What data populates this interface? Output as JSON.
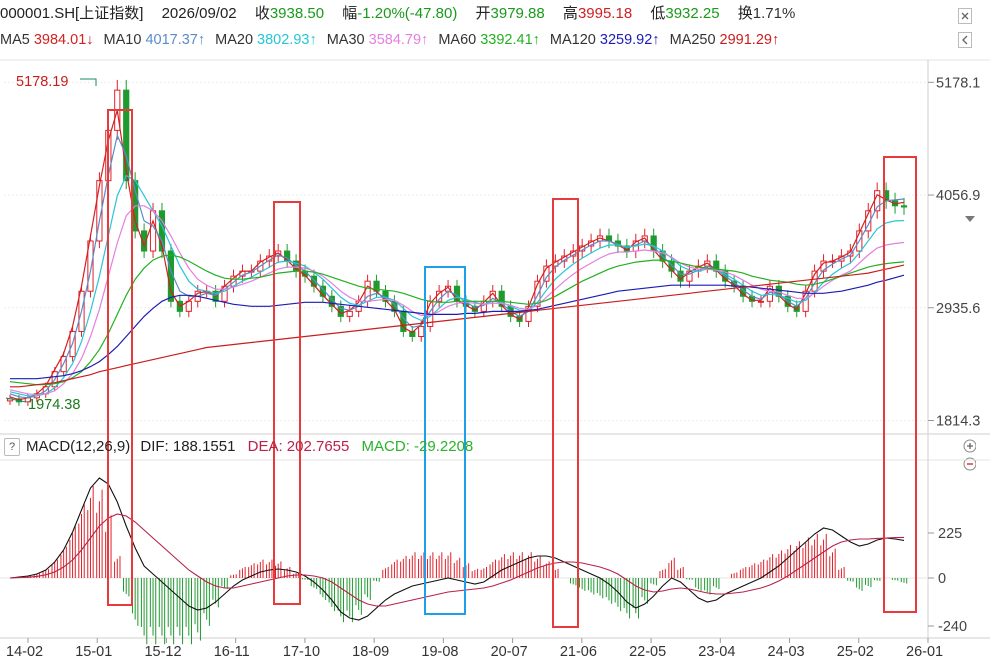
{
  "header": {
    "code": "000001.SH[上证指数]",
    "date": "2026/09/02",
    "close_label": "收",
    "close": "3938.50",
    "change_label": "幅",
    "change": "-1.20%(-47.80)",
    "open_label": "开",
    "open": "3979.88",
    "high_label": "高",
    "high": "3995.18",
    "low_label": "低",
    "low": "3932.25",
    "turnover_label": "换",
    "turnover": "1.71%"
  },
  "ma_legend": [
    {
      "label": "MA5",
      "value": "3984.01↓",
      "color": "#d42020"
    },
    {
      "label": "MA10",
      "value": "4017.37↑",
      "color": "#5a8cc8"
    },
    {
      "label": "MA20",
      "value": "3802.93↑",
      "color": "#26c6d6"
    },
    {
      "label": "MA30",
      "value": "3584.79↑",
      "color": "#e27fe0"
    },
    {
      "label": "MA60",
      "value": "3392.41↑",
      "color": "#22b022"
    },
    {
      "label": "MA120",
      "value": "3259.92↑",
      "color": "#1c1cb4"
    },
    {
      "label": "MA250",
      "value": "2991.29↑",
      "color": "#c81e1e"
    }
  ],
  "macd_header": {
    "help": "?",
    "title": "MACD(12,26,9)",
    "dif": "DIF: 188.1551",
    "dea": "DEA: 202.7655",
    "macd": "MACD: -29.2208"
  },
  "chart_data": {
    "type": "candlestick",
    "price_axis": {
      "ticks": [
        "5178.1",
        "4056.9",
        "2935.6",
        "1814.3"
      ],
      "range": [
        1700,
        5400
      ]
    },
    "annotations": {
      "high": "5178.19",
      "low": "1974.38"
    },
    "macd_axis": {
      "ticks": [
        "225",
        "0",
        "-240"
      ],
      "range": [
        -290,
        580
      ]
    },
    "x_ticks": [
      "14-02",
      "15-01",
      "15-12",
      "16-11",
      "17-10",
      "18-09",
      "19-08",
      "20-07",
      "21-06",
      "22-05",
      "23-04",
      "24-03",
      "25-02",
      "26-01"
    ],
    "price_series": [
      2030,
      2000,
      2040,
      2080,
      2150,
      2300,
      2450,
      2700,
      3100,
      3600,
      4200,
      4700,
      5100,
      4200,
      3700,
      3500,
      3900,
      3500,
      3000,
      2900,
      3000,
      3100,
      3100,
      3000,
      3150,
      3250,
      3300,
      3300,
      3400,
      3450,
      3500,
      3400,
      3300,
      3250,
      3150,
      3050,
      2950,
      2850,
      2900,
      3000,
      3200,
      3100,
      3000,
      2900,
      2700,
      2650,
      2750,
      3000,
      3100,
      3150,
      3000,
      2950,
      2900,
      3000,
      3100,
      2950,
      2850,
      2800,
      2950,
      3200,
      3350,
      3400,
      3450,
      3500,
      3550,
      3600,
      3650,
      3600,
      3550,
      3500,
      3600,
      3650,
      3500,
      3400,
      3300,
      3200,
      3300,
      3350,
      3400,
      3300,
      3200,
      3150,
      3050,
      3000,
      3000,
      3150,
      3050,
      2950,
      2900,
      3100,
      3300,
      3400,
      3400,
      3450,
      3500,
      3700,
      3900,
      4100,
      4000,
      3950,
      3938
    ],
    "ma_series": {
      "MA5": [
        2050,
        2020,
        2040,
        2080,
        2160,
        2320,
        2480,
        2750,
        3150,
        3650,
        4150,
        4600,
        4900,
        4300,
        3800,
        3550,
        3800,
        3550,
        3100,
        2950,
        3000,
        3080,
        3100,
        3050,
        3150,
        3230,
        3300,
        3300,
        3390,
        3440,
        3480,
        3410,
        3320,
        3260,
        3160,
        3060,
        2970,
        2880,
        2910,
        2990,
        3150,
        3100,
        3010,
        2920,
        2740,
        2690,
        2770,
        2980,
        3080,
        3140,
        3010,
        2960,
        2910,
        2990,
        3080,
        2960,
        2870,
        2820,
        2940,
        3170,
        3330,
        3390,
        3440,
        3490,
        3540,
        3590,
        3630,
        3600,
        3560,
        3510,
        3590,
        3630,
        3510,
        3410,
        3310,
        3220,
        3290,
        3340,
        3380,
        3310,
        3220,
        3160,
        3070,
        3010,
        3010,
        3130,
        3060,
        2970,
        2920,
        3080,
        3270,
        3380,
        3400,
        3440,
        3490,
        3680,
        3870,
        4060,
        4010,
        3970,
        3984
      ],
      "MA10": [
        2080,
        2050,
        2040,
        2060,
        2110,
        2220,
        2380,
        2580,
        2900,
        3300,
        3800,
        4250,
        4650,
        4450,
        4100,
        3800,
        3750,
        3600,
        3300,
        3100,
        3050,
        3050,
        3080,
        3060,
        3120,
        3190,
        3260,
        3290,
        3350,
        3410,
        3460,
        3430,
        3360,
        3300,
        3210,
        3120,
        3020,
        2930,
        2910,
        2950,
        3050,
        3080,
        3040,
        2970,
        2830,
        2740,
        2760,
        2900,
        3020,
        3100,
        3060,
        2990,
        2940,
        2960,
        3030,
        2980,
        2900,
        2850,
        2900,
        3060,
        3240,
        3340,
        3410,
        3460,
        3510,
        3560,
        3600,
        3600,
        3570,
        3530,
        3560,
        3600,
        3540,
        3450,
        3360,
        3270,
        3270,
        3310,
        3350,
        3320,
        3250,
        3190,
        3110,
        3050,
        3020,
        3090,
        3070,
        3000,
        2950,
        3030,
        3180,
        3310,
        3370,
        3420,
        3460,
        3600,
        3760,
        3940,
        4000,
        4010,
        4017
      ],
      "MA20": [
        2100,
        2080,
        2060,
        2060,
        2080,
        2140,
        2240,
        2380,
        2600,
        2900,
        3250,
        3650,
        4050,
        4250,
        4200,
        4050,
        3900,
        3750,
        3550,
        3350,
        3200,
        3120,
        3100,
        3080,
        3100,
        3150,
        3200,
        3240,
        3290,
        3340,
        3390,
        3400,
        3380,
        3350,
        3290,
        3220,
        3130,
        3040,
        2980,
        2960,
        3000,
        3040,
        3040,
        3010,
        2930,
        2850,
        2810,
        2850,
        2930,
        3010,
        3040,
        3020,
        2990,
        2970,
        3000,
        2990,
        2950,
        2910,
        2910,
        2990,
        3110,
        3220,
        3300,
        3370,
        3430,
        3480,
        3530,
        3560,
        3560,
        3540,
        3550,
        3570,
        3550,
        3500,
        3430,
        3350,
        3310,
        3300,
        3320,
        3310,
        3270,
        3220,
        3160,
        3100,
        3060,
        3070,
        3060,
        3030,
        2990,
        3010,
        3090,
        3190,
        3270,
        3330,
        3380,
        3480,
        3600,
        3720,
        3780,
        3800,
        3803
      ],
      "MA30": [
        2120,
        2100,
        2080,
        2070,
        2080,
        2110,
        2180,
        2280,
        2430,
        2650,
        2920,
        3250,
        3580,
        3850,
        3950,
        3950,
        3900,
        3800,
        3650,
        3480,
        3330,
        3220,
        3160,
        3120,
        3120,
        3140,
        3170,
        3200,
        3240,
        3280,
        3320,
        3340,
        3340,
        3330,
        3300,
        3250,
        3180,
        3100,
        3040,
        3000,
        3000,
        3010,
        3020,
        3010,
        2960,
        2900,
        2860,
        2860,
        2900,
        2950,
        2980,
        2990,
        2980,
        2970,
        2980,
        2980,
        2960,
        2930,
        2920,
        2960,
        3040,
        3120,
        3200,
        3270,
        3330,
        3380,
        3430,
        3470,
        3490,
        3490,
        3500,
        3510,
        3500,
        3480,
        3440,
        3380,
        3340,
        3320,
        3320,
        3310,
        3290,
        3260,
        3210,
        3160,
        3120,
        3100,
        3090,
        3060,
        3030,
        3030,
        3080,
        3150,
        3210,
        3260,
        3300,
        3380,
        3460,
        3530,
        3560,
        3575,
        3585
      ],
      "MA60": [
        2200,
        2190,
        2180,
        2170,
        2170,
        2180,
        2200,
        2240,
        2300,
        2400,
        2520,
        2680,
        2870,
        3060,
        3220,
        3330,
        3410,
        3450,
        3460,
        3440,
        3400,
        3350,
        3300,
        3260,
        3230,
        3220,
        3220,
        3230,
        3240,
        3260,
        3280,
        3290,
        3300,
        3300,
        3290,
        3270,
        3240,
        3210,
        3180,
        3150,
        3130,
        3120,
        3110,
        3100,
        3080,
        3050,
        3020,
        3000,
        2990,
        2990,
        3000,
        3000,
        3000,
        3000,
        3000,
        3000,
        2990,
        2980,
        2970,
        2980,
        3010,
        3050,
        3100,
        3150,
        3200,
        3240,
        3280,
        3320,
        3350,
        3370,
        3390,
        3400,
        3410,
        3410,
        3400,
        3380,
        3360,
        3340,
        3330,
        3320,
        3310,
        3300,
        3280,
        3250,
        3230,
        3210,
        3200,
        3190,
        3170,
        3160,
        3170,
        3190,
        3220,
        3250,
        3280,
        3310,
        3340,
        3360,
        3375,
        3385,
        3392
      ],
      "MA120": [
        2230,
        2230,
        2230,
        2230,
        2240,
        2250,
        2260,
        2280,
        2310,
        2350,
        2400,
        2470,
        2550,
        2650,
        2750,
        2850,
        2930,
        3000,
        3040,
        3060,
        3060,
        3050,
        3030,
        3010,
        2990,
        2970,
        2960,
        2950,
        2950,
        2950,
        2960,
        2970,
        2980,
        2990,
        2990,
        2990,
        2980,
        2970,
        2960,
        2950,
        2940,
        2930,
        2920,
        2910,
        2900,
        2890,
        2880,
        2870,
        2870,
        2870,
        2870,
        2880,
        2880,
        2890,
        2900,
        2900,
        2900,
        2900,
        2910,
        2920,
        2940,
        2960,
        2980,
        3000,
        3020,
        3040,
        3060,
        3080,
        3100,
        3110,
        3120,
        3130,
        3140,
        3150,
        3160,
        3160,
        3160,
        3160,
        3160,
        3160,
        3160,
        3150,
        3150,
        3140,
        3130,
        3120,
        3110,
        3100,
        3090,
        3080,
        3080,
        3080,
        3090,
        3100,
        3120,
        3140,
        3160,
        3190,
        3210,
        3235,
        3260
      ],
      "MA250": [
        2150,
        2150,
        2160,
        2170,
        2180,
        2190,
        2210,
        2230,
        2250,
        2270,
        2300,
        2320,
        2340,
        2360,
        2380,
        2400,
        2420,
        2440,
        2460,
        2480,
        2500,
        2520,
        2540,
        2550,
        2560,
        2570,
        2580,
        2590,
        2600,
        2610,
        2620,
        2630,
        2640,
        2650,
        2660,
        2670,
        2680,
        2690,
        2700,
        2710,
        2720,
        2730,
        2740,
        2750,
        2760,
        2770,
        2780,
        2790,
        2800,
        2810,
        2820,
        2830,
        2840,
        2850,
        2860,
        2870,
        2880,
        2890,
        2900,
        2910,
        2920,
        2930,
        2940,
        2950,
        2960,
        2970,
        2980,
        2990,
        3000,
        3010,
        3020,
        3030,
        3040,
        3050,
        3060,
        3070,
        3080,
        3090,
        3100,
        3110,
        3120,
        3130,
        3140,
        3150,
        3160,
        3170,
        3180,
        3190,
        3200,
        3210,
        3220,
        3230,
        3240,
        3250,
        3260,
        3270,
        3280,
        3300,
        3320,
        3340,
        3360
      ]
    },
    "macd": {
      "dif": [
        0,
        5,
        10,
        20,
        40,
        80,
        140,
        230,
        340,
        450,
        500,
        470,
        380,
        260,
        150,
        60,
        20,
        -20,
        -60,
        -100,
        -140,
        -160,
        -150,
        -120,
        -80,
        -40,
        -10,
        10,
        30,
        40,
        45,
        40,
        30,
        10,
        -20,
        -60,
        -110,
        -170,
        -200,
        -210,
        -190,
        -150,
        -110,
        -80,
        -60,
        -40,
        -30,
        -20,
        -10,
        0,
        -10,
        -20,
        -30,
        -20,
        10,
        40,
        60,
        80,
        100,
        110,
        110,
        100,
        80,
        60,
        40,
        20,
        0,
        -30,
        -70,
        -120,
        -150,
        -130,
        -90,
        -40,
        0,
        -20,
        -60,
        -100,
        -120,
        -110,
        -80,
        -60,
        -40,
        -20,
        0,
        30,
        60,
        100,
        140,
        180,
        220,
        250,
        240,
        210,
        180,
        160,
        170,
        190,
        200,
        195,
        188
      ],
      "dea": [
        0,
        2,
        4,
        8,
        16,
        30,
        55,
        90,
        140,
        200,
        260,
        300,
        320,
        310,
        280,
        240,
        200,
        160,
        120,
        80,
        40,
        10,
        -20,
        -40,
        -50,
        -50,
        -40,
        -30,
        -20,
        -10,
        0,
        10,
        15,
        15,
        10,
        0,
        -20,
        -50,
        -80,
        -110,
        -130,
        -140,
        -140,
        -130,
        -120,
        -110,
        -100,
        -90,
        -80,
        -70,
        -65,
        -60,
        -55,
        -50,
        -40,
        -25,
        -10,
        10,
        30,
        50,
        65,
        75,
        80,
        80,
        75,
        65,
        55,
        40,
        20,
        -10,
        -40,
        -60,
        -70,
        -65,
        -55,
        -50,
        -55,
        -65,
        -75,
        -80,
        -80,
        -75,
        -70,
        -60,
        -50,
        -35,
        -15,
        10,
        40,
        70,
        100,
        130,
        160,
        180,
        190,
        195,
        195,
        198,
        200,
        202,
        203
      ],
      "hist_note": "bars = DIF - DEA"
    },
    "highlight_boxes": [
      {
        "color": "#e83a3a",
        "x_index": 12
      },
      {
        "color": "#e83a3a",
        "x_index": 33
      },
      {
        "color": "#1ca0e8",
        "x_index": 50
      },
      {
        "color": "#e83a3a",
        "x_index": 65
      },
      {
        "color": "#e83a3a",
        "x_index": 104
      }
    ]
  }
}
